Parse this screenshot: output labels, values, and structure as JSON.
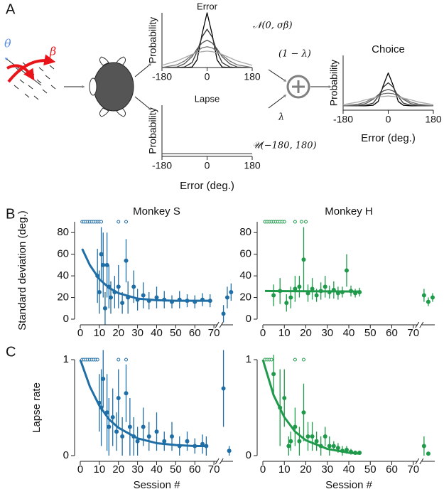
{
  "panel_labels": [
    "A",
    "B",
    "C"
  ],
  "diagram": {
    "theta": "θ",
    "beta": "β",
    "normal": "𝒩(0, σβ)",
    "one_minus_lambda": "(1 − λ)",
    "lambda": "λ",
    "uniform": "𝒰(−180, 180)"
  },
  "chart_data": [
    {
      "type": "line",
      "title": "Error",
      "ylabel": "Probability",
      "xlim": [
        -180,
        180
      ],
      "ylim": [
        0,
        1
      ],
      "xticks": [
        -180,
        0,
        180
      ],
      "x": [
        -180,
        -120,
        -90,
        -60,
        -40,
        -20,
        0,
        20,
        40,
        60,
        90,
        120,
        180
      ],
      "series": [
        {
          "color": "#000000",
          "values": [
            0,
            0,
            0,
            0.01,
            0.14,
            0.61,
            1,
            0.61,
            0.14,
            0.01,
            0,
            0,
            0
          ]
        },
        {
          "color": "#333333",
          "values": [
            0,
            0,
            0.01,
            0.09,
            0.29,
            0.56,
            0.7,
            0.56,
            0.29,
            0.09,
            0.01,
            0,
            0
          ]
        },
        {
          "color": "#555555",
          "values": [
            0,
            0.01,
            0.07,
            0.2,
            0.34,
            0.45,
            0.5,
            0.45,
            0.34,
            0.2,
            0.07,
            0.01,
            0
          ]
        },
        {
          "color": "#777777",
          "values": [
            0,
            0.05,
            0.12,
            0.23,
            0.3,
            0.36,
            0.38,
            0.36,
            0.3,
            0.23,
            0.12,
            0.05,
            0
          ]
        },
        {
          "color": "#aaaaaa",
          "values": [
            0.04,
            0.12,
            0.18,
            0.24,
            0.27,
            0.29,
            0.3,
            0.29,
            0.27,
            0.24,
            0.18,
            0.12,
            0.04
          ]
        }
      ]
    },
    {
      "type": "line",
      "title": "Lapse",
      "ylabel": "Probability",
      "xlabel": "Error (deg.)",
      "xlim": [
        -180,
        180
      ],
      "ylim": [
        0,
        1
      ],
      "xticks": [
        -180,
        0,
        180
      ],
      "x": [
        -180,
        180
      ],
      "series": [
        {
          "color": "#555555",
          "values": [
            0.05,
            0.05
          ]
        }
      ]
    },
    {
      "type": "line",
      "title": "Choice",
      "ylabel": "Probability",
      "xlabel": "Error (deg.)",
      "xlim": [
        -180,
        180
      ],
      "ylim": [
        0,
        1
      ],
      "xticks": [
        -180,
        0,
        180
      ],
      "x": [
        -180,
        -120,
        -90,
        -60,
        -40,
        -20,
        0,
        20,
        40,
        60,
        90,
        120,
        180
      ],
      "series": [
        {
          "color": "#000000",
          "values": [
            0.08,
            0.08,
            0.08,
            0.09,
            0.16,
            0.45,
            0.68,
            0.45,
            0.16,
            0.09,
            0.08,
            0.08,
            0.08
          ]
        },
        {
          "color": "#333333",
          "values": [
            0.08,
            0.08,
            0.09,
            0.13,
            0.25,
            0.42,
            0.5,
            0.42,
            0.25,
            0.13,
            0.09,
            0.08,
            0.08
          ]
        },
        {
          "color": "#555555",
          "values": [
            0.08,
            0.09,
            0.12,
            0.2,
            0.28,
            0.35,
            0.38,
            0.35,
            0.28,
            0.2,
            0.12,
            0.09,
            0.08
          ]
        },
        {
          "color": "#777777",
          "values": [
            0.08,
            0.11,
            0.15,
            0.22,
            0.26,
            0.3,
            0.31,
            0.3,
            0.26,
            0.22,
            0.15,
            0.11,
            0.08
          ]
        },
        {
          "color": "#aaaaaa",
          "values": [
            0.1,
            0.15,
            0.19,
            0.22,
            0.24,
            0.25,
            0.26,
            0.25,
            0.24,
            0.22,
            0.19,
            0.15,
            0.1
          ]
        }
      ]
    },
    {
      "type": "errorbar",
      "title": "Monkey S",
      "ylabel": "Standard deviation (deg.)",
      "color": "#1f6ea6",
      "xlim": [
        0,
        80
      ],
      "ylim": [
        0,
        90
      ],
      "xticks": [
        0,
        10,
        20,
        30,
        40,
        50,
        60,
        70
      ],
      "yticks": [
        0,
        20,
        40,
        60,
        80
      ],
      "points": {
        "x": [
          9,
          10,
          11,
          12,
          13,
          14,
          15,
          16,
          18,
          20,
          22,
          24,
          25,
          28,
          30,
          33,
          36,
          40,
          44,
          48,
          52,
          56,
          60,
          64,
          68,
          75,
          77,
          79
        ],
        "values": [
          40,
          25,
          60,
          50,
          10,
          50,
          30,
          20,
          25,
          30,
          15,
          54,
          20,
          30,
          18,
          22,
          17,
          20,
          18,
          16,
          18,
          17,
          16,
          18,
          17,
          5,
          20,
          25
        ],
        "errors": [
          25,
          20,
          25,
          30,
          15,
          30,
          20,
          15,
          15,
          20,
          10,
          20,
          15,
          15,
          10,
          12,
          8,
          10,
          8,
          6,
          8,
          6,
          6,
          6,
          6,
          8,
          10,
          8
        ]
      },
      "fit": {
        "x": [
          1,
          5,
          10,
          15,
          20,
          30,
          40,
          50,
          60,
          68
        ],
        "values": [
          65,
          50,
          37,
          29,
          24,
          19,
          17.5,
          17,
          17,
          17
        ]
      },
      "ceiling": {
        "x": [
          1,
          2,
          3,
          4,
          5,
          6,
          7,
          8,
          9,
          10,
          11,
          20,
          24
        ],
        "values": [
          90,
          90,
          90,
          90,
          90,
          90,
          90,
          90,
          90,
          90,
          90,
          90,
          90
        ]
      }
    },
    {
      "type": "errorbar",
      "title": "Monkey H",
      "color": "#1e9a4a",
      "xlim": [
        0,
        80
      ],
      "ylim": [
        0,
        90
      ],
      "xticks": [
        0,
        10,
        20,
        30,
        40,
        50,
        60,
        70
      ],
      "yticks": [
        0,
        20,
        40,
        60,
        80
      ],
      "points": {
        "x": [
          5,
          8,
          11,
          13,
          15,
          17,
          19,
          21,
          23,
          25,
          27,
          29,
          31,
          33,
          35,
          37,
          39,
          41,
          43,
          45,
          75,
          77,
          79
        ],
        "values": [
          22,
          26,
          15,
          20,
          28,
          30,
          55,
          24,
          28,
          22,
          26,
          30,
          25,
          27,
          24,
          25,
          45,
          26,
          24,
          25,
          22,
          16,
          20
        ],
        "errors": [
          10,
          12,
          8,
          10,
          12,
          10,
          30,
          8,
          10,
          6,
          8,
          10,
          6,
          8,
          6,
          5,
          15,
          5,
          4,
          4,
          6,
          4,
          4
        ]
      },
      "fit": {
        "x": [
          1,
          45
        ],
        "values": [
          26,
          25.5
        ]
      },
      "ceiling": {
        "x": [
          1,
          2,
          3,
          4,
          5,
          6,
          7,
          8,
          9,
          10,
          15,
          18,
          20
        ],
        "values": [
          90,
          90,
          90,
          90,
          90,
          90,
          90,
          90,
          90,
          90,
          90,
          90,
          90
        ]
      }
    },
    {
      "type": "errorbar",
      "ylabel": "Lapse rate",
      "xlabel": "Session #",
      "color": "#1f6ea6",
      "xlim": [
        0,
        80
      ],
      "ylim": [
        0,
        1
      ],
      "xticks": [
        0,
        10,
        20,
        30,
        40,
        50,
        60,
        70
      ],
      "yticks": [
        0,
        1
      ],
      "points": {
        "x": [
          10,
          11,
          12,
          14,
          15,
          17,
          19,
          20,
          22,
          24,
          26,
          28,
          30,
          33,
          36,
          40,
          44,
          48,
          52,
          56,
          60,
          64,
          66,
          75,
          78
        ],
        "values": [
          0.55,
          0.5,
          0.8,
          0.45,
          0.3,
          0.4,
          0.25,
          0.6,
          0.2,
          0.65,
          0.3,
          0.2,
          0.15,
          0.3,
          0.2,
          0.25,
          0.15,
          0.2,
          0.1,
          0.15,
          0.1,
          0.12,
          0.1,
          0.7,
          0.05
        ],
        "errors": [
          0.3,
          0.4,
          0.3,
          0.4,
          0.3,
          0.3,
          0.2,
          0.3,
          0.2,
          0.3,
          0.3,
          0.2,
          0.15,
          0.2,
          0.15,
          0.2,
          0.1,
          0.15,
          0.1,
          0.1,
          0.08,
          0.1,
          0.1,
          0.4,
          0.05
        ]
      },
      "fit": {
        "x": [
          0,
          5,
          10,
          15,
          20,
          30,
          40,
          50,
          60,
          67
        ],
        "values": [
          1,
          0.72,
          0.52,
          0.38,
          0.29,
          0.18,
          0.13,
          0.11,
          0.1,
          0.1
        ]
      },
      "ceiling": {
        "x": [
          1,
          2,
          3,
          4,
          5,
          6,
          7,
          8,
          9,
          20,
          24
        ],
        "values": [
          1,
          1,
          1,
          1,
          1,
          1,
          1,
          1,
          1,
          1,
          1
        ]
      }
    },
    {
      "type": "errorbar",
      "xlabel": "Session #",
      "color": "#1e9a4a",
      "xlim": [
        0,
        80
      ],
      "ylim": [
        0,
        1
      ],
      "xticks": [
        0,
        10,
        20,
        30,
        40,
        50,
        60,
        70
      ],
      "yticks": [
        0,
        1
      ],
      "points": {
        "x": [
          5,
          8,
          10,
          12,
          13,
          15,
          17,
          19,
          21,
          23,
          25,
          27,
          29,
          31,
          33,
          35,
          37,
          39,
          41,
          43,
          45,
          75,
          77
        ],
        "values": [
          0.85,
          0.5,
          0.6,
          0.1,
          0.15,
          0.3,
          0.15,
          0.45,
          0.2,
          0.2,
          0.15,
          0.1,
          0.2,
          0.1,
          0.1,
          0.08,
          0.05,
          0.06,
          0.04,
          0.03,
          0.03,
          0.1,
          0.02
        ],
        "errors": [
          0.2,
          0.4,
          0.3,
          0.1,
          0.1,
          0.2,
          0.15,
          0.3,
          0.15,
          0.15,
          0.1,
          0.1,
          0.1,
          0.1,
          0.05,
          0.05,
          0.05,
          0.04,
          0.03,
          0.02,
          0.02,
          0.1,
          0.02
        ]
      },
      "fit": {
        "x": [
          0,
          5,
          10,
          15,
          20,
          30,
          40,
          45
        ],
        "values": [
          1,
          0.63,
          0.4,
          0.25,
          0.16,
          0.07,
          0.03,
          0.02
        ]
      },
      "ceiling": {
        "x": [
          1,
          2,
          3,
          4,
          15,
          19
        ],
        "values": [
          1,
          1,
          1,
          1,
          1,
          1
        ]
      }
    }
  ]
}
